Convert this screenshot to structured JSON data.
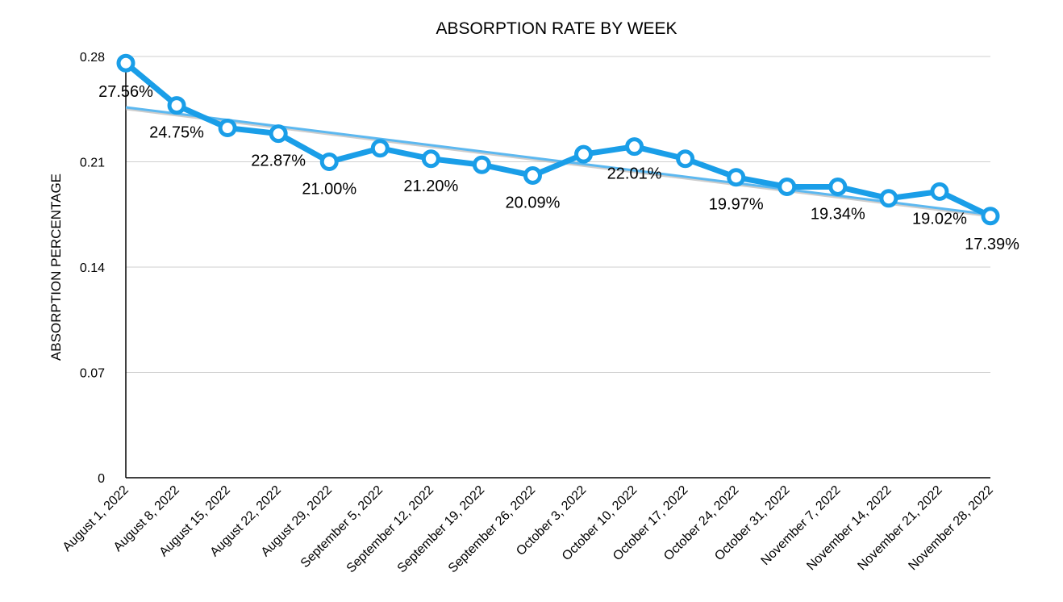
{
  "chart_data": {
    "type": "line",
    "title": "ABSORPTION RATE BY WEEK",
    "xlabel": "",
    "ylabel": "ABSORPTION PERCENTAGE",
    "ylim": [
      0,
      0.28
    ],
    "yticks": [
      "0",
      "0.07",
      "0.14",
      "0.21",
      "0.28"
    ],
    "grid": true,
    "line_color": "#1a9ee8",
    "trend_color": "#5cb8f0",
    "categories": [
      "August 1, 2022",
      "August 8, 2022",
      "August 15, 2022",
      "August 22, 2022",
      "August 29, 2022",
      "September 5, 2022",
      "September 12, 2022",
      "September 19, 2022",
      "September 26, 2022",
      "October 3, 2022",
      "October 10, 2022",
      "October 17, 2022",
      "October 24, 2022",
      "October 31, 2022",
      "November 7, 2022",
      "November 14, 2022",
      "November 21, 2022",
      "November 28, 2022"
    ],
    "series": [
      {
        "values": [
          0.2756,
          0.2475,
          0.2325,
          0.2287,
          0.21,
          0.219,
          0.212,
          0.208,
          0.2009,
          0.215,
          0.2201,
          0.212,
          0.1997,
          0.1934,
          0.1934,
          0.1857,
          0.1902,
          0.1739
        ]
      }
    ],
    "data_labels": [
      {
        "index": 0,
        "text": "27.56%"
      },
      {
        "index": 1,
        "text": "24.75%"
      },
      {
        "index": 3,
        "text": "22.87%"
      },
      {
        "index": 4,
        "text": "21.00%"
      },
      {
        "index": 6,
        "text": "21.20%"
      },
      {
        "index": 8,
        "text": "20.09%"
      },
      {
        "index": 10,
        "text": "22.01%"
      },
      {
        "index": 12,
        "text": "19.97%"
      },
      {
        "index": 14,
        "text": "19.34%"
      },
      {
        "index": 16,
        "text": "19.02%"
      },
      {
        "index": 17,
        "text": "17.39%"
      }
    ],
    "trendline": {
      "start": 0.2462,
      "end": 0.1749
    }
  }
}
